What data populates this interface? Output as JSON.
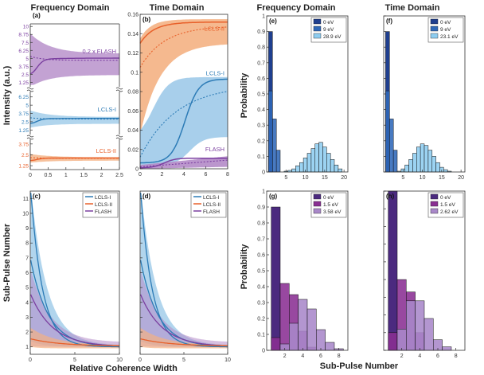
{
  "figure": {
    "col_titles": [
      "Frequency Domain",
      "Time Domain",
      "Frequency Domain",
      "Time Domain"
    ],
    "xlabel_left": "Relative Coherence Width",
    "xlabel_right": "Sub-Pulse Number",
    "ylabel_intensity": "Intensity (a.u.)",
    "ylabel_subpulse": "Sub-Pulse Number",
    "ylabel_prob": "Probability"
  },
  "colors": {
    "lcls1": "#2c7bb6",
    "lcls1_fill": "#9ecae9",
    "lcls2": "#e8602a",
    "lcls2_fill": "#f4b183",
    "flash": "#7b3fa0",
    "flash_fill": "#b48bc8",
    "hist_e": [
      "#1f3f8f",
      "#2f68b8",
      "#8ecdf0"
    ],
    "hist_g": [
      "#4b2a7f",
      "#8a2f93",
      "#a988c9"
    ]
  },
  "chart_data": [
    {
      "id": "a",
      "type": "area",
      "panel_label": "(a)",
      "xlim": [
        0,
        2.5
      ],
      "xticks": [
        0,
        0.5,
        1,
        1.5,
        2,
        2.5
      ],
      "tick_labels": {
        "flash": [
          "10",
          "8.75",
          "7.5",
          "6.25",
          "5",
          "3.75",
          "2.5",
          "1.25"
        ],
        "lcls1": [
          "6.25",
          "5",
          "3.75",
          "2.5",
          "1.25"
        ],
        "lcls2": [
          "3.75",
          "2.5",
          "1.25"
        ]
      },
      "annotations": [
        "0.2 x FLASH",
        "LCLS-I",
        "LCLS-II"
      ]
    },
    {
      "id": "b",
      "type": "area",
      "panel_label": "(b)",
      "xlim": [
        0,
        8
      ],
      "ylim": [
        0,
        0.16
      ],
      "xticks": [
        0,
        2,
        4,
        6,
        8
      ],
      "yticks": [
        0,
        0.02,
        0.04,
        0.06,
        0.08,
        0.1,
        0.12,
        0.14,
        0.16
      ],
      "ytick_labels": [
        "0",
        "0.02",
        "0.04",
        "0.06",
        "0.08",
        "0.1",
        "0.12",
        "0.14",
        "0.16"
      ],
      "annotations": [
        "LCLS-II",
        "LCLS-I",
        "FLASH"
      ]
    },
    {
      "id": "c",
      "type": "line",
      "panel_label": "(c)",
      "xlim": [
        0,
        10
      ],
      "ylim": [
        0.5,
        11.5
      ],
      "xticks": [
        0,
        5,
        10
      ],
      "yticks": [
        1,
        2,
        3,
        4,
        5,
        6,
        7,
        8,
        9,
        10,
        11
      ],
      "legend": [
        "LCLS-I",
        "LCLS-II",
        "FLASH"
      ],
      "legend_position": "top-right"
    },
    {
      "id": "d",
      "type": "line",
      "panel_label": "(d)",
      "xlim": [
        0,
        10
      ],
      "ylim": [
        0.5,
        11.5
      ],
      "xticks": [
        0,
        5,
        10
      ],
      "legend": [
        "LCLS-I",
        "LCLS-II",
        "FLASH"
      ],
      "legend_position": "top-right"
    },
    {
      "id": "e",
      "type": "bar",
      "panel_label": "(e)",
      "xlim": [
        0,
        21
      ],
      "ylim": [
        0,
        1
      ],
      "xticks": [
        5,
        10,
        15,
        20
      ],
      "yticks": [
        0,
        0.1,
        0.2,
        0.3,
        0.4,
        0.5,
        0.6,
        0.7,
        0.8,
        0.9,
        1
      ],
      "ytick_labels": [
        "0",
        "0.1",
        "0.2",
        "0.3",
        "0.4",
        "0.5",
        "0.6",
        "0.7",
        "0.8",
        "0.9",
        "1"
      ],
      "legend": [
        "0 eV",
        "9 eV",
        "28.9 eV"
      ],
      "legend_position": "top-right",
      "series": [
        {
          "x": [
            1
          ],
          "values": [
            0.9
          ]
        },
        {
          "x": [
            1,
            2,
            3
          ],
          "values": [
            0.52,
            0.34,
            0.14
          ]
        },
        {
          "x": [
            5,
            6,
            7,
            8,
            9,
            10,
            11,
            12,
            13,
            14,
            15,
            16,
            17,
            18,
            19
          ],
          "values": [
            0.005,
            0.01,
            0.02,
            0.04,
            0.06,
            0.09,
            0.12,
            0.15,
            0.18,
            0.19,
            0.16,
            0.12,
            0.08,
            0.045,
            0.02
          ]
        }
      ]
    },
    {
      "id": "f",
      "type": "bar",
      "panel_label": "(f)",
      "xlim": [
        0,
        21
      ],
      "ylim": [
        0,
        1
      ],
      "xticks": [
        5,
        10,
        15,
        20
      ],
      "legend": [
        "0 eV",
        "9 eV",
        "23.1 eV"
      ],
      "legend_position": "top-right",
      "series": [
        {
          "x": [
            1
          ],
          "values": [
            0.9
          ]
        },
        {
          "x": [
            1,
            2,
            3
          ],
          "values": [
            0.52,
            0.34,
            0.14
          ]
        },
        {
          "x": [
            4,
            5,
            6,
            7,
            8,
            9,
            10,
            11,
            12,
            13,
            14,
            15,
            16,
            17
          ],
          "values": [
            0.005,
            0.02,
            0.045,
            0.08,
            0.12,
            0.16,
            0.18,
            0.17,
            0.14,
            0.1,
            0.06,
            0.03,
            0.015,
            0.005
          ]
        }
      ]
    },
    {
      "id": "g",
      "type": "bar",
      "panel_label": "(g)",
      "xlim": [
        0,
        9
      ],
      "ylim": [
        0,
        1
      ],
      "xticks": [
        2,
        4,
        6,
        8
      ],
      "yticks": [
        0,
        0.1,
        0.2,
        0.3,
        0.4,
        0.5,
        0.6,
        0.7,
        0.8,
        0.9,
        1
      ],
      "ytick_labels": [
        "0",
        "0.1",
        "0.2",
        "0.3",
        "0.4",
        "0.5",
        "0.6",
        "0.7",
        "0.8",
        "0.9",
        "1"
      ],
      "legend": [
        "0 eV",
        "1.5 eV",
        "3.58 eV"
      ],
      "legend_position": "top-right",
      "series": [
        {
          "x": [
            1
          ],
          "values": [
            0.9
          ]
        },
        {
          "x": [
            1,
            2,
            3,
            4,
            5
          ],
          "values": [
            0.08,
            0.42,
            0.35,
            0.12,
            0.02
          ]
        },
        {
          "x": [
            2,
            3,
            4,
            5,
            6,
            7,
            8
          ],
          "values": [
            0.04,
            0.17,
            0.32,
            0.26,
            0.13,
            0.05,
            0.01
          ]
        }
      ]
    },
    {
      "id": "h",
      "type": "bar",
      "panel_label": "(h)",
      "xlim": [
        0,
        9
      ],
      "ylim": [
        0,
        0.9
      ],
      "xticks": [
        2,
        4,
        6,
        8
      ],
      "legend": [
        "0 eV",
        "1.5 eV",
        "2.62 eV"
      ],
      "legend_position": "top-right",
      "series": [
        {
          "x": [
            1
          ],
          "values": [
            0.9
          ]
        },
        {
          "x": [
            1,
            2,
            3,
            4
          ],
          "values": [
            0.1,
            0.4,
            0.33,
            0.1
          ]
        },
        {
          "x": [
            2,
            3,
            4,
            5,
            6,
            7
          ],
          "values": [
            0.12,
            0.28,
            0.28,
            0.18,
            0.06,
            0.02
          ]
        }
      ]
    }
  ]
}
